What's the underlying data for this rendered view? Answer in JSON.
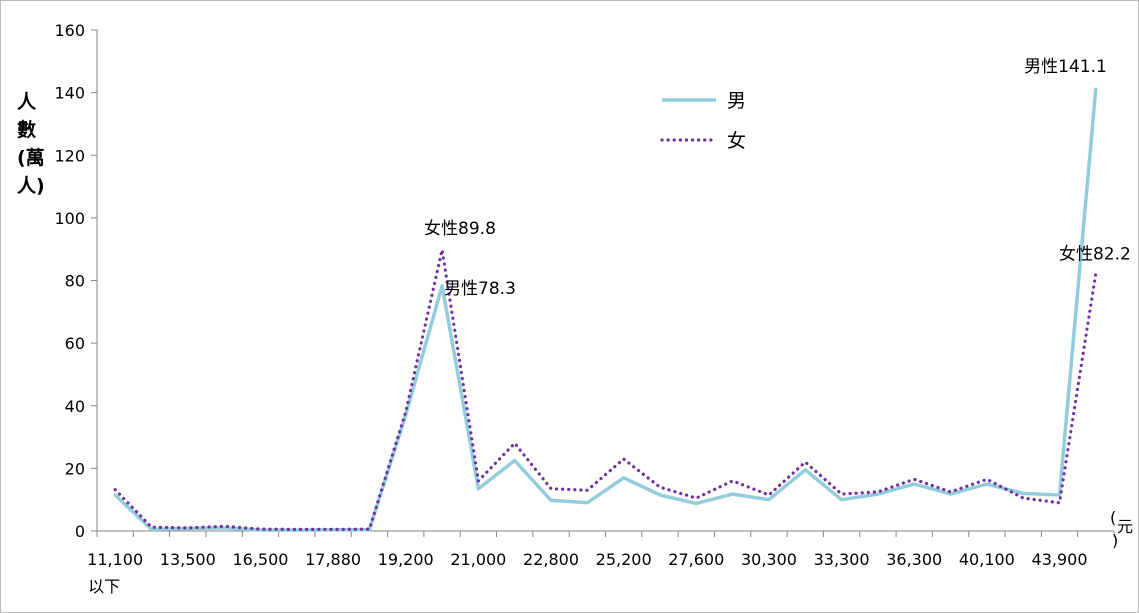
{
  "chart_data": {
    "type": "line",
    "title": "",
    "ylabel": "人數(萬人)",
    "ylabel_chars": [
      "人",
      "數",
      "(萬",
      "人)"
    ],
    "xlabel_unit": "(元)",
    "xlabel_unit_chars": [
      "(",
      "元",
      ")"
    ],
    "ylim": [
      0,
      160
    ],
    "yticks": [
      0,
      20,
      40,
      60,
      80,
      100,
      120,
      140,
      160
    ],
    "grid": false,
    "legend_position": "top-center",
    "x_tick_labels": [
      "11,100",
      "13,500",
      "16,500",
      "17,880",
      "19,200",
      "21,000",
      "22,800",
      "25,200",
      "27,600",
      "30,300",
      "33,300",
      "36,300",
      "40,100",
      "43,900"
    ],
    "x_tick_sublabel": "以下",
    "series": [
      {
        "name": "男",
        "color": "#93cddd",
        "style": "solid",
        "values": [
          11.5,
          0.5,
          0.8,
          1.0,
          0.3,
          0.3,
          0.4,
          0.4,
          37.0,
          78.3,
          13.5,
          22.5,
          9.8,
          9.0,
          17.0,
          11.5,
          8.8,
          11.8,
          10.0,
          19.5,
          10.0,
          11.8,
          15.0,
          11.8,
          15.0,
          12.0,
          11.5,
          141.1
        ]
      },
      {
        "name": "女",
        "color": "#7030a0",
        "style": "dotted",
        "values": [
          13.2,
          1.2,
          1.0,
          1.5,
          0.6,
          0.5,
          0.5,
          0.6,
          38.0,
          89.8,
          16.0,
          28.0,
          13.5,
          13.0,
          23.0,
          14.0,
          10.5,
          16.0,
          11.5,
          22.0,
          11.8,
          12.5,
          16.5,
          12.5,
          16.5,
          10.5,
          9.0,
          82.2
        ]
      }
    ],
    "annotations": [
      {
        "text": "女性89.8",
        "series": 1,
        "point": 9
      },
      {
        "text": "男性78.3",
        "series": 0,
        "point": 9
      },
      {
        "text": "男性141.1",
        "series": 0,
        "point": 27
      },
      {
        "text": "女性82.2",
        "series": 1,
        "point": 27
      }
    ]
  }
}
